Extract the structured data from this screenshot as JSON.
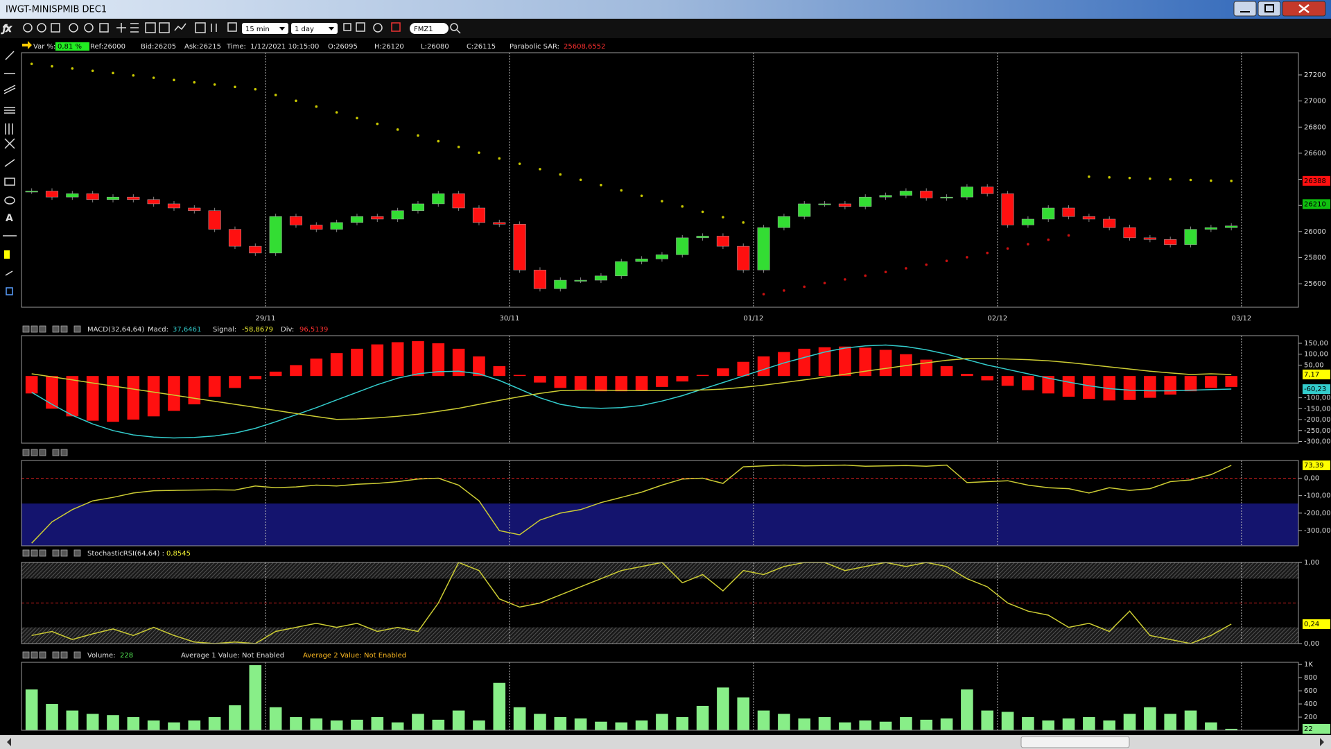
{
  "window": {
    "title": "IWGT-MINISPMIB DEC1"
  },
  "toolbar": {
    "interval": "15 min",
    "range": "1 day",
    "symbol": "FMZ1"
  },
  "info_bar": {
    "var_label": "Var %:",
    "var_value": "0,81 %",
    "ref": "Ref:26000",
    "bid": "Bid:26205",
    "ask": "Ask:26215",
    "time_label": "Time:",
    "time": "1/12/2021 10:15:00",
    "open": "O:26095",
    "high": "H:26120",
    "low": "L:26080",
    "close": "C:26115",
    "sar_label": "Parabolic SAR:",
    "sar_value": "25608,6552"
  },
  "chart_data": [
    {
      "type": "candlestick",
      "xlim": [
        -0.5,
        62.3
      ],
      "xticks": [
        {
          "value": 11.5,
          "label": "29/11"
        },
        {
          "value": 23.5,
          "label": "30/11"
        },
        {
          "value": 35.5,
          "label": "01/12"
        },
        {
          "value": 47.5,
          "label": "02/12"
        },
        {
          "value": 59.5,
          "label": "03/12"
        }
      ],
      "ylim": [
        25420,
        27370
      ],
      "yticks": [
        25600,
        25800,
        26000,
        26200,
        26400,
        26600,
        26800,
        27000,
        27200
      ],
      "up_color": "#33dd33",
      "down_color": "#ff1010",
      "close": [
        26310,
        26264,
        26290,
        26245,
        26264,
        26245,
        26212,
        26180,
        26160,
        26017,
        25887,
        25835,
        26115,
        26050,
        26017,
        26069,
        26115,
        26095,
        26160,
        26212,
        26290,
        26180,
        26069,
        26056,
        25705,
        25562,
        25627,
        25627,
        25660,
        25770,
        25790,
        25822,
        25952,
        25965,
        25887,
        25705,
        26030,
        26115,
        26212,
        26212,
        26192,
        26264,
        26277,
        26310,
        26257,
        26264,
        26342,
        26290,
        26050,
        26095,
        26180,
        26115,
        26095,
        26030,
        25952,
        25939,
        25900,
        26017,
        26030,
        26043
      ],
      "series": [
        {
          "color": "#c8c800",
          "values": [
            27284,
            27266,
            27249,
            27231,
            27214,
            27196,
            27178,
            27161,
            27143,
            27126,
            27108,
            27090,
            27046,
            27002,
            26957,
            26913,
            26869,
            26825,
            26781,
            26736,
            26692,
            26648,
            26604,
            26560,
            26519,
            26478,
            26437,
            26396,
            26356,
            26315,
            26274,
            26233,
            26192,
            26151,
            26110,
            26069,
            null,
            null,
            null,
            null,
            null,
            null,
            null,
            null,
            null,
            null,
            null,
            null,
            null,
            null,
            null,
            null,
            26420,
            26415,
            26410,
            26405,
            26400,
            26395,
            26390,
            26388
          ]
        },
        {
          "color": "#cc1010",
          "values": [
            null,
            null,
            null,
            null,
            null,
            null,
            null,
            null,
            null,
            null,
            null,
            null,
            null,
            null,
            null,
            null,
            null,
            null,
            null,
            null,
            null,
            null,
            null,
            null,
            null,
            null,
            null,
            null,
            null,
            null,
            null,
            null,
            null,
            null,
            null,
            null,
            25520,
            25548,
            25577,
            25605,
            25633,
            25662,
            25690,
            25718,
            25746,
            25775,
            25803,
            25836,
            25870,
            25903,
            25937,
            25970,
            null,
            null,
            null,
            null,
            null,
            null,
            null,
            null
          ]
        }
      ],
      "value_boxes": [
        {
          "value": 26388,
          "label": "26388",
          "color": "#ff1010"
        },
        {
          "value": 26210,
          "label": "26210",
          "color": "#10c010"
        }
      ]
    },
    {
      "type": "macd",
      "header": {
        "name": "MACD(32,64,64)",
        "macd_label": "Macd:",
        "macd_value": "37,6461",
        "signal_label": "Signal:",
        "signal_value": "-58,8679",
        "div_label": "Div:",
        "div_value": "96,5139"
      },
      "ylim": [
        -308,
        185
      ],
      "yticks": [
        {
          "value": 150,
          "label": "150,00"
        },
        {
          "value": 100,
          "label": "100,00"
        },
        {
          "value": 50,
          "label": "50,00"
        },
        {
          "value": -100,
          "label": "-100,00"
        },
        {
          "value": -150,
          "label": "-150,00"
        },
        {
          "value": -200,
          "label": "-200,00"
        },
        {
          "value": -250,
          "label": "-250,00"
        },
        {
          "value": -300,
          "label": "-300,00"
        }
      ],
      "histogram": {
        "color": "#ff1010",
        "values": [
          -80,
          -150,
          -185,
          -205,
          -210,
          -200,
          -185,
          -160,
          -130,
          -95,
          -55,
          -15,
          20,
          50,
          80,
          105,
          125,
          145,
          155,
          160,
          150,
          125,
          90,
          45,
          5,
          -30,
          -55,
          -65,
          -70,
          -70,
          -65,
          -50,
          -25,
          5,
          35,
          65,
          90,
          110,
          125,
          132,
          135,
          130,
          120,
          100,
          75,
          45,
          10,
          -20,
          -45,
          -65,
          -80,
          -95,
          -105,
          -112,
          -110,
          -100,
          -85,
          -70,
          -55,
          -50
        ]
      },
      "series": [
        {
          "color": "#33cccc",
          "values": [
            -75,
            -130,
            -180,
            -220,
            -250,
            -270,
            -280,
            -284,
            -282,
            -275,
            -262,
            -240,
            -210,
            -178,
            -145,
            -110,
            -75,
            -40,
            -10,
            10,
            20,
            22,
            10,
            -20,
            -60,
            -100,
            -130,
            -145,
            -148,
            -145,
            -135,
            -115,
            -90,
            -60,
            -30,
            0,
            30,
            60,
            85,
            110,
            128,
            138,
            142,
            135,
            120,
            100,
            75,
            50,
            30,
            10,
            -10,
            -28,
            -45,
            -58,
            -65,
            -68,
            -68,
            -65,
            -62,
            -60
          ]
        },
        {
          "color": "#cccc33",
          "values": [
            10,
            -4,
            -18,
            -32,
            -46,
            -60,
            -74,
            -88,
            -102,
            -116,
            -130,
            -144,
            -158,
            -172,
            -186,
            -199,
            -197,
            -192,
            -185,
            -175,
            -162,
            -148,
            -130,
            -112,
            -95,
            -80,
            -67,
            -65,
            -65,
            -66,
            -67,
            -67,
            -66,
            -64,
            -60,
            -52,
            -42,
            -30,
            -18,
            -5,
            8,
            22,
            35,
            48,
            60,
            72,
            80,
            80,
            78,
            75,
            70,
            62,
            52,
            42,
            32,
            22,
            14,
            7,
            10,
            7
          ]
        }
      ],
      "value_boxes": [
        {
          "value": 7.17,
          "label": "7,17",
          "color": "#ffff00"
        },
        {
          "value": -60.23,
          "label": "-60,23",
          "color": "#33cccc"
        }
      ]
    },
    {
      "type": "line",
      "ylim": [
        -387,
        101
      ],
      "yticks": [
        {
          "value": 0,
          "label": "0,00"
        },
        {
          "value": -100,
          "label": "-100,00"
        },
        {
          "value": -200,
          "label": "-200,00"
        },
        {
          "value": -300,
          "label": "-300,00"
        }
      ],
      "zones": [
        {
          "range": [
            -387,
            -145
          ],
          "color": "#14146e",
          "hatch": false
        }
      ],
      "ref_line": 0,
      "series": [
        {
          "color": "#cccc33",
          "values": [
            -372,
            -250,
            -180,
            -130,
            -110,
            -85,
            -72,
            -70,
            -68,
            -67,
            -68,
            -45,
            -55,
            -50,
            -40,
            -45,
            -35,
            -30,
            -20,
            -5,
            0,
            -40,
            -130,
            -300,
            -324,
            -240,
            -200,
            -180,
            -140,
            -110,
            -80,
            -40,
            -5,
            0,
            -30,
            65,
            70,
            75,
            70,
            72,
            75,
            68,
            70,
            72,
            68,
            75,
            -25,
            -20,
            -15,
            -40,
            -55,
            -60,
            -85,
            -55,
            -70,
            -60,
            -20,
            -10,
            20,
            73.39
          ]
        }
      ],
      "value_boxes": [
        {
          "value": 73.39,
          "label": "73,39",
          "color": "#ffff00"
        }
      ]
    },
    {
      "type": "line",
      "header": {
        "name": "StochasticRSI(64,64) :",
        "value": "0,8545"
      },
      "ylim": [
        0,
        1
      ],
      "yticks": [
        {
          "value": 1,
          "label": "1,00"
        },
        {
          "value": 0,
          "label": "0,00"
        }
      ],
      "zones": [
        {
          "range": [
            0.8,
            1
          ],
          "color": "#666666",
          "hatch": true
        },
        {
          "range": [
            0,
            0.2
          ],
          "color": "#666666",
          "hatch": true
        }
      ],
      "ref_line": 0.5,
      "series": [
        {
          "color": "#cccc33",
          "values": [
            0.1,
            0.15,
            0.05,
            0.12,
            0.18,
            0.1,
            0.2,
            0.1,
            0.02,
            0,
            0.02,
            0,
            0.15,
            0.2,
            0.25,
            0.2,
            0.25,
            0.15,
            0.2,
            0.15,
            0.5,
            1,
            0.9,
            0.55,
            0.45,
            0.5,
            0.6,
            0.7,
            0.8,
            0.9,
            0.95,
            1,
            0.75,
            0.85,
            0.65,
            0.9,
            0.85,
            0.95,
            1,
            1,
            0.9,
            0.95,
            1,
            0.95,
            1,
            0.95,
            0.8,
            0.7,
            0.5,
            0.4,
            0.35,
            0.2,
            0.25,
            0.15,
            0.4,
            0.1,
            0.05,
            0,
            0.1,
            0.24
          ]
        }
      ],
      "value_boxes": [
        {
          "value": 0.24,
          "label": "0,24",
          "color": "#ffff00"
        }
      ]
    },
    {
      "type": "bar",
      "header": {
        "volume_label": "Volume:",
        "volume_value": "228",
        "avg1_label": "Average 1 Value:",
        "avg1_value": "Not Enabled",
        "avg2_label": "Average 2 Value:",
        "avg2_value": "Not Enabled"
      },
      "color": "#88ee88",
      "ylim": [
        0,
        1033
      ],
      "yticks": [
        {
          "value": 1000,
          "label": "1K"
        },
        800,
        600,
        400,
        200
      ],
      "values": [
        620,
        400,
        300,
        250,
        230,
        200,
        150,
        120,
        150,
        200,
        380,
        990,
        350,
        200,
        180,
        150,
        160,
        200,
        120,
        250,
        160,
        300,
        150,
        720,
        350,
        250,
        200,
        180,
        130,
        120,
        150,
        250,
        200,
        370,
        650,
        500,
        300,
        250,
        180,
        200,
        120,
        150,
        130,
        200,
        160,
        180,
        620,
        300,
        280,
        200,
        150,
        180,
        200,
        150,
        250,
        350,
        250,
        300,
        120,
        22
      ],
      "value_boxes": [
        {
          "value": 22,
          "label": "22",
          "color": "#88ee88"
        }
      ]
    }
  ]
}
